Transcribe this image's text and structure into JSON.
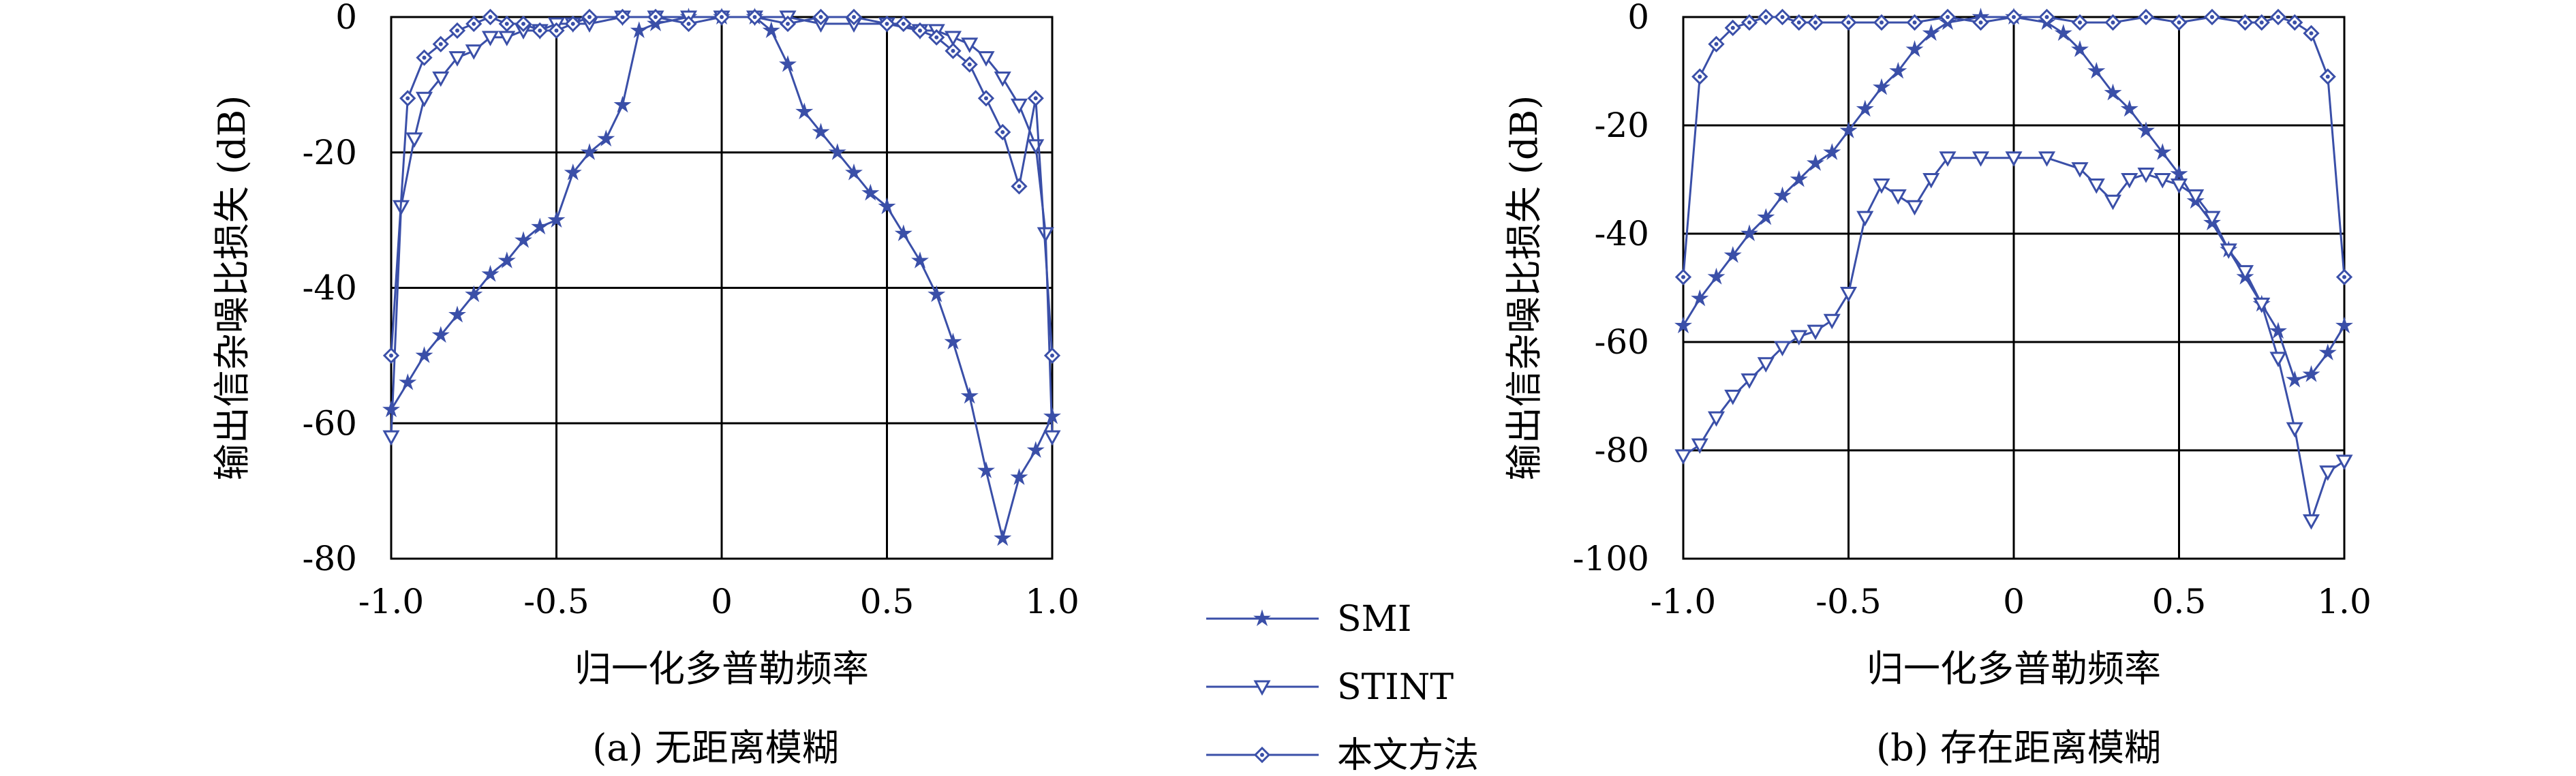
{
  "chart_data": [
    {
      "type": "line",
      "caption": "(a) 无距离模糊",
      "xlabel": "归一化多普勒频率",
      "ylabel": "输出信杂噪比损失 (dB)",
      "xlim": [
        -1.0,
        1.0
      ],
      "ylim": [
        -80,
        0
      ],
      "xticks": [
        "-1.0",
        "-0.5",
        "0",
        "0.5",
        "1.0"
      ],
      "yticks": [
        "0",
        "-20",
        "-40",
        "-60",
        "-80"
      ],
      "grid": true,
      "series": [
        {
          "name": "SMI",
          "marker": "star",
          "x": [
            -1.0,
            -0.95,
            -0.9,
            -0.85,
            -0.8,
            -0.75,
            -0.7,
            -0.65,
            -0.6,
            -0.55,
            -0.5,
            -0.45,
            -0.4,
            -0.35,
            -0.3,
            -0.25,
            -0.2,
            -0.1,
            0.0,
            0.1,
            0.15,
            0.2,
            0.25,
            0.3,
            0.35,
            0.4,
            0.45,
            0.5,
            0.55,
            0.6,
            0.65,
            0.7,
            0.75,
            0.8,
            0.85,
            0.9,
            0.95,
            1.0
          ],
          "y": [
            -58,
            -54,
            -50,
            -47,
            -44,
            -41,
            -38,
            -36,
            -33,
            -31,
            -30,
            -23,
            -20,
            -18,
            -13,
            -2,
            -1,
            0,
            0,
            0,
            -2,
            -7,
            -14,
            -17,
            -20,
            -23,
            -26,
            -28,
            -32,
            -36,
            -41,
            -48,
            -56,
            -67,
            -77,
            -68,
            -64,
            -59
          ]
        },
        {
          "name": "STINT",
          "marker": "triangle-down",
          "x": [
            -1.0,
            -0.97,
            -0.93,
            -0.9,
            -0.85,
            -0.8,
            -0.75,
            -0.7,
            -0.65,
            -0.6,
            -0.55,
            -0.5,
            -0.45,
            -0.4,
            -0.3,
            -0.2,
            -0.1,
            0.0,
            0.1,
            0.2,
            0.3,
            0.4,
            0.5,
            0.6,
            0.65,
            0.7,
            0.75,
            0.8,
            0.85,
            0.9,
            0.95,
            0.98,
            1.0
          ],
          "y": [
            -62,
            -28,
            -18,
            -12,
            -9,
            -6,
            -5,
            -3,
            -3,
            -2,
            -2,
            -1,
            -1,
            -1,
            0,
            0,
            0,
            0,
            0,
            0,
            -1,
            -1,
            -1,
            -2,
            -2,
            -3,
            -4,
            -6,
            -9,
            -13,
            -19,
            -32,
            -62
          ]
        },
        {
          "name": "本文方法",
          "marker": "diamond",
          "x": [
            -1.0,
            -0.95,
            -0.9,
            -0.85,
            -0.8,
            -0.75,
            -0.7,
            -0.65,
            -0.6,
            -0.55,
            -0.5,
            -0.45,
            -0.4,
            -0.3,
            -0.2,
            -0.1,
            0.0,
            0.1,
            0.2,
            0.3,
            0.4,
            0.5,
            0.55,
            0.6,
            0.65,
            0.7,
            0.75,
            0.8,
            0.85,
            0.9,
            0.95,
            1.0
          ],
          "y": [
            -50,
            -12,
            -6,
            -4,
            -2,
            -1,
            0,
            -1,
            -1,
            -2,
            -2,
            -1,
            0,
            0,
            0,
            -1,
            0,
            0,
            -1,
            0,
            0,
            -1,
            -1,
            -2,
            -3,
            -5,
            -7,
            -12,
            -17,
            -25,
            -12,
            -50
          ]
        }
      ]
    },
    {
      "type": "line",
      "caption": "(b) 存在距离模糊",
      "xlabel": "归一化多普勒频率",
      "ylabel": "输出信杂噪比损失 (dB)",
      "xlim": [
        -1.0,
        1.0
      ],
      "ylim": [
        -100,
        0
      ],
      "xticks": [
        "-1.0",
        "-0.5",
        "0",
        "0.5",
        "1.0"
      ],
      "yticks": [
        "0",
        "-20",
        "-40",
        "-60",
        "-80",
        "-100"
      ],
      "grid": true,
      "series": [
        {
          "name": "SMI",
          "marker": "star",
          "x": [
            -1.0,
            -0.95,
            -0.9,
            -0.85,
            -0.8,
            -0.75,
            -0.7,
            -0.65,
            -0.6,
            -0.55,
            -0.5,
            -0.45,
            -0.4,
            -0.35,
            -0.3,
            -0.25,
            -0.2,
            -0.1,
            0.0,
            0.1,
            0.15,
            0.2,
            0.25,
            0.3,
            0.35,
            0.4,
            0.45,
            0.5,
            0.55,
            0.6,
            0.65,
            0.7,
            0.75,
            0.8,
            0.85,
            0.9,
            0.95,
            1.0
          ],
          "y": [
            -57,
            -52,
            -48,
            -44,
            -40,
            -37,
            -33,
            -30,
            -27,
            -25,
            -21,
            -17,
            -13,
            -10,
            -6,
            -3,
            -1,
            0,
            0,
            -1,
            -3,
            -6,
            -10,
            -14,
            -17,
            -21,
            -25,
            -29,
            -34,
            -38,
            -43,
            -48,
            -53,
            -58,
            -67,
            -66,
            -62,
            -57
          ]
        },
        {
          "name": "STINT",
          "marker": "triangle-down",
          "x": [
            -1.0,
            -0.95,
            -0.9,
            -0.85,
            -0.8,
            -0.75,
            -0.7,
            -0.65,
            -0.6,
            -0.55,
            -0.5,
            -0.45,
            -0.4,
            -0.35,
            -0.3,
            -0.25,
            -0.2,
            -0.1,
            0.0,
            0.1,
            0.2,
            0.25,
            0.3,
            0.35,
            0.4,
            0.45,
            0.5,
            0.55,
            0.6,
            0.65,
            0.7,
            0.75,
            0.8,
            0.85,
            0.9,
            0.95,
            1.0
          ],
          "y": [
            -81,
            -79,
            -74,
            -70,
            -67,
            -64,
            -61,
            -59,
            -58,
            -56,
            -51,
            -37,
            -31,
            -33,
            -35,
            -30,
            -26,
            -26,
            -26,
            -26,
            -28,
            -31,
            -34,
            -30,
            -29,
            -30,
            -31,
            -33,
            -37,
            -43,
            -47,
            -53,
            -63,
            -76,
            -93,
            -84,
            -82
          ]
        },
        {
          "name": "本文方法",
          "marker": "diamond",
          "x": [
            -1.0,
            -0.95,
            -0.9,
            -0.85,
            -0.8,
            -0.75,
            -0.7,
            -0.65,
            -0.6,
            -0.5,
            -0.4,
            -0.3,
            -0.2,
            -0.1,
            0.0,
            0.1,
            0.2,
            0.3,
            0.4,
            0.5,
            0.6,
            0.7,
            0.75,
            0.8,
            0.85,
            0.9,
            0.95,
            1.0
          ],
          "y": [
            -48,
            -11,
            -5,
            -2,
            -1,
            0,
            0,
            -1,
            -1,
            -1,
            -1,
            -1,
            0,
            -1,
            0,
            0,
            -1,
            -1,
            0,
            -1,
            0,
            -1,
            -1,
            0,
            -1,
            -3,
            -11,
            -48
          ]
        }
      ]
    }
  ],
  "legend": {
    "items": [
      {
        "label": "SMI",
        "marker": "star"
      },
      {
        "label": "STINT",
        "marker": "triangle-down"
      },
      {
        "label": "本文方法",
        "marker": "diamond"
      }
    ]
  },
  "colors": {
    "series": "#3a4fa8",
    "grid": "#000000",
    "axes": "#000000",
    "text": "#000000"
  }
}
